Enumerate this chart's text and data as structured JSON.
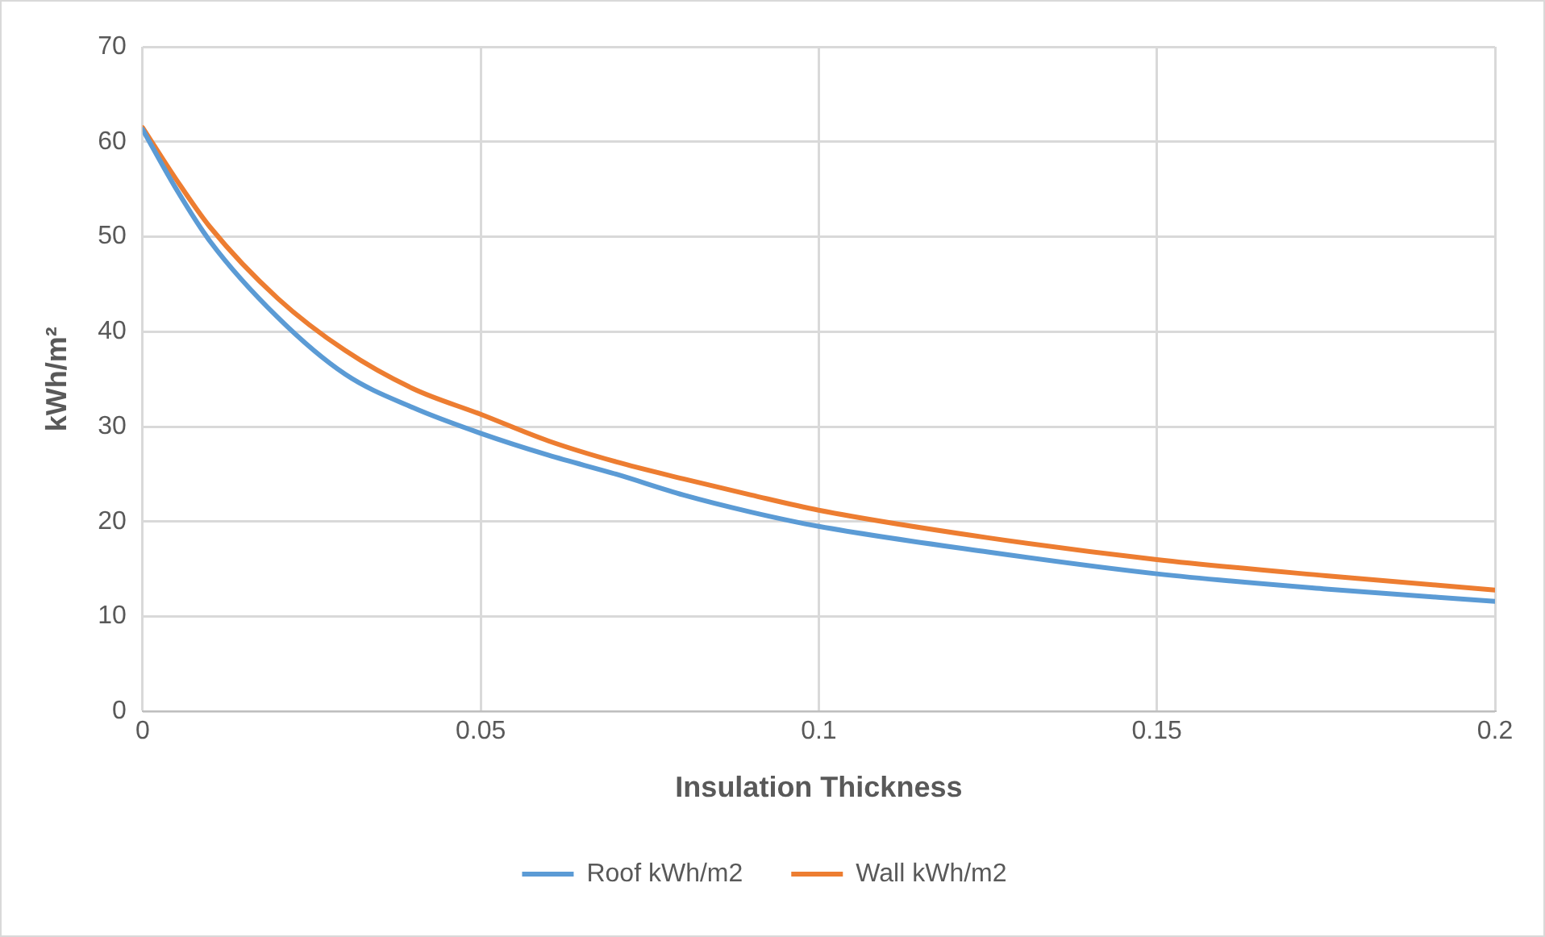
{
  "chart_data": {
    "type": "line",
    "xlabel": "Insulation Thickness",
    "ylabel": "kWh/m²",
    "x": [
      0,
      0.005,
      0.01,
      0.02,
      0.03,
      0.04,
      0.05,
      0.06,
      0.07,
      0.08,
      0.09,
      0.1,
      0.125,
      0.15,
      0.175,
      0.2
    ],
    "series": [
      {
        "name": "Roof kWh/m2",
        "color": "#5b9bd5",
        "values": [
          61.3,
          55,
          49.5,
          41.5,
          35.5,
          32,
          29.3,
          27,
          25,
          22.8,
          21,
          19.5,
          16.8,
          14.5,
          12.9,
          11.6
        ]
      },
      {
        "name": "Wall kWh/m2",
        "color": "#ed7d31",
        "values": [
          61.5,
          56,
          51,
          43.5,
          38,
          34,
          31.3,
          28.5,
          26.3,
          24.5,
          22.8,
          21.2,
          18.3,
          16,
          14.3,
          12.8
        ]
      }
    ],
    "xlim": [
      0,
      0.2
    ],
    "xticks": [
      0,
      0.05,
      0.1,
      0.15,
      0.2
    ],
    "ylim": [
      0,
      70
    ],
    "yticks": [
      0,
      10,
      20,
      30,
      40,
      50,
      60,
      70
    ],
    "grid": true,
    "legend": "bottom",
    "marker": "none",
    "line_style": "solid"
  }
}
